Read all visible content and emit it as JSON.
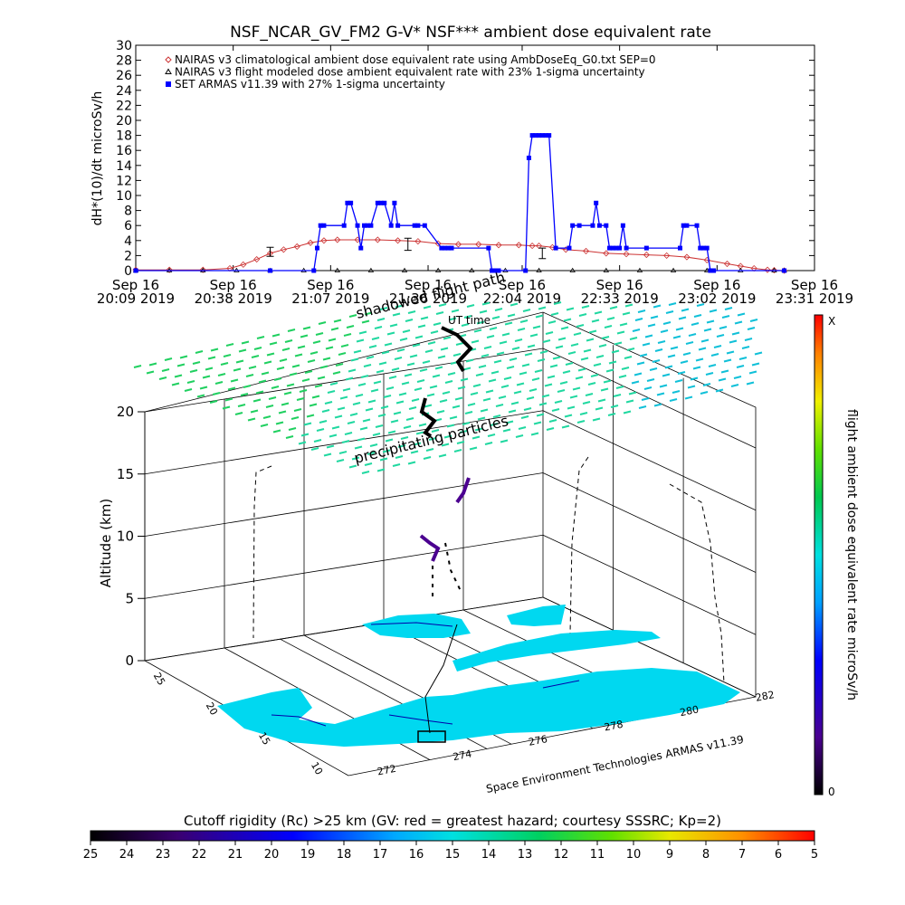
{
  "chart_data": [
    {
      "type": "line",
      "title": "NSF_NCAR_GV_FM2 G-V* NSF*** ambient dose equivalent rate",
      "ylabel": "dH*(10)/dt microSv/h",
      "xlabel": "",
      "ylim": [
        0,
        30
      ],
      "yticks": [
        "0",
        "2",
        "4",
        "6",
        "8",
        "10",
        "12",
        "14",
        "16",
        "18",
        "20",
        "22",
        "24",
        "26",
        "28",
        "30"
      ],
      "xticks": [
        {
          "date": "Sep 16",
          "time": "20:09 2019",
          "t": 0
        },
        {
          "date": "Sep 16",
          "time": "20:38 2019",
          "t": 29
        },
        {
          "date": "Sep 16",
          "time": "21:07 2019",
          "t": 58
        },
        {
          "date": "Sep 16",
          "time": "21:36 2019",
          "t": 87
        },
        {
          "date": "Sep 16",
          "time": "22:04 2019",
          "t": 115
        },
        {
          "date": "Sep 16",
          "time": "22:33 2019",
          "t": 144
        },
        {
          "date": "Sep 16",
          "time": "23:02 2019",
          "t": 173
        },
        {
          "date": "Sep 16",
          "time": "23:31 2019",
          "t": 202
        }
      ],
      "legend_position": "top-left",
      "series": [
        {
          "name": "NAIRAS v3 climatological ambient dose equivalent rate using AmbDoseEq_G0.txt SEP=0",
          "color": "#cc3333",
          "marker": "diamond",
          "x": [
            0,
            10,
            20,
            28,
            32,
            36,
            40,
            44,
            48,
            52,
            56,
            60,
            66,
            72,
            78,
            84,
            90,
            96,
            102,
            108,
            114,
            118,
            120,
            124,
            128,
            134,
            140,
            146,
            152,
            158,
            164,
            170,
            176,
            180,
            184,
            188,
            190,
            193
          ],
          "values": [
            0.1,
            0.1,
            0.1,
            0.3,
            0.8,
            1.5,
            2.3,
            2.8,
            3.2,
            3.7,
            4.0,
            4.1,
            4.1,
            4.1,
            4.0,
            3.9,
            3.6,
            3.5,
            3.5,
            3.4,
            3.4,
            3.3,
            3.3,
            3.1,
            2.8,
            2.6,
            2.3,
            2.2,
            2.1,
            2.0,
            1.8,
            1.4,
            0.9,
            0.6,
            0.3,
            0.1,
            0.05,
            0.0
          ]
        },
        {
          "name": "NAIRAS v3 flight modeled dose ambient equivalent rate with 23% 1-sigma uncertainty",
          "color": "#000000",
          "marker": "triangle",
          "x": [
            0,
            10,
            20,
            30,
            40,
            50,
            60,
            70,
            80,
            90,
            100,
            110,
            120,
            130,
            140,
            150,
            160,
            170,
            180,
            190,
            193
          ],
          "values": [
            0,
            0,
            0,
            0,
            0,
            0,
            0,
            0,
            0,
            0,
            0,
            0,
            0,
            0,
            0,
            0,
            0,
            0,
            0,
            0,
            0
          ]
        },
        {
          "name": "SET ARMAS v11.39 with 27% 1-sigma uncertainty",
          "color": "#0000ff",
          "marker": "square",
          "x": [
            0,
            40,
            53,
            54,
            55,
            56,
            62,
            63,
            64,
            66,
            67,
            68,
            69,
            70,
            72,
            73,
            74,
            76,
            77,
            78,
            83,
            84,
            86,
            91,
            92,
            93,
            94,
            105,
            106,
            107,
            108,
            116,
            117,
            118,
            119,
            120,
            121,
            122,
            123,
            125,
            129,
            130,
            132,
            136,
            137,
            138,
            140,
            141,
            142,
            143,
            144,
            145,
            146,
            152,
            162,
            163,
            164,
            167,
            168,
            169,
            170,
            171,
            172,
            193
          ],
          "values": [
            0,
            0,
            0,
            3,
            6,
            6,
            6,
            9,
            9,
            6,
            3,
            6,
            6,
            6,
            9,
            9,
            9,
            6,
            9,
            6,
            6,
            6,
            6,
            3,
            3,
            3,
            3,
            3,
            0,
            0,
            0,
            0,
            15,
            18,
            18,
            18,
            18,
            18,
            18,
            3,
            3,
            6,
            6,
            6,
            9,
            6,
            6,
            3,
            3,
            3,
            3,
            6,
            3,
            3,
            3,
            6,
            6,
            6,
            3,
            3,
            3,
            0,
            0,
            0
          ]
        }
      ],
      "error_bars": [
        {
          "x": 40,
          "center": 2.5,
          "half": 0.6
        },
        {
          "x": 81,
          "center": 3.5,
          "half": 0.8
        },
        {
          "x": 121,
          "center": 2.3,
          "half": 0.7
        }
      ]
    },
    {
      "type": "3d-map",
      "zlabel": "Altitude (km)",
      "zticks": [
        "0",
        "5",
        "10",
        "15",
        "20"
      ],
      "lon_ticks": [
        "272",
        "274",
        "276",
        "278",
        "280",
        "282"
      ],
      "lat_ticks": [
        "10",
        "15",
        "20",
        "25"
      ],
      "annotations": [
        "shadowed flight path",
        "UT time",
        "precipitating particles"
      ],
      "credit": "Space Environment Technologies ARMAS v11.39",
      "dose_colorbar": {
        "label": "flight ambient dose equivalent rate microSv/h",
        "max_label": "X",
        "min_label": "0"
      }
    },
    {
      "type": "colorbar",
      "title": "Cutoff rigidity (Rc) >25 km (GV: red = greatest hazard; courtesy SSSRC; Kp=2)",
      "ticks": [
        "25",
        "24",
        "23",
        "22",
        "21",
        "20",
        "19",
        "18",
        "17",
        "16",
        "15",
        "14",
        "13",
        "12",
        "11",
        "10",
        "9",
        "8",
        "7",
        "6",
        "5"
      ]
    }
  ]
}
